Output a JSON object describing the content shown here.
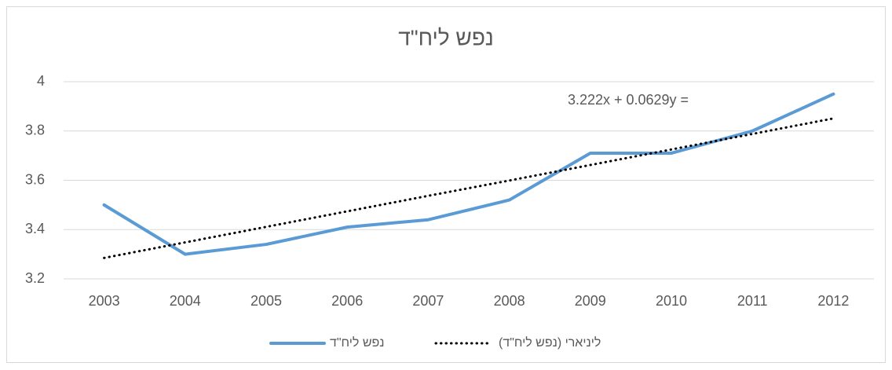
{
  "chart_data": {
    "type": "line",
    "title": "נפש ליח\"ד",
    "categories": [
      "2003",
      "2004",
      "2005",
      "2006",
      "2007",
      "2008",
      "2009",
      "2010",
      "2011",
      "2012"
    ],
    "series": [
      {
        "name": "נפש ליח\"ד",
        "color": "#5b9bd5",
        "style": "solid",
        "values": [
          3.5,
          3.3,
          3.34,
          3.41,
          3.44,
          3.52,
          3.71,
          3.71,
          3.8,
          3.95
        ]
      },
      {
        "name": "ליניארי (נפש ליח\"ד)",
        "color": "#000000",
        "style": "dotted",
        "values": [
          3.285,
          3.348,
          3.411,
          3.474,
          3.537,
          3.599,
          3.662,
          3.725,
          3.788,
          3.851
        ]
      }
    ],
    "annotation": "3.222x + 0.0629y =",
    "ylim": [
      3.2,
      4
    ],
    "yticks": [
      {
        "value": 3.2,
        "label": "3.2"
      },
      3.4,
      3.6,
      3.8,
      4
    ],
    "grid": true,
    "legend": "bottom"
  }
}
